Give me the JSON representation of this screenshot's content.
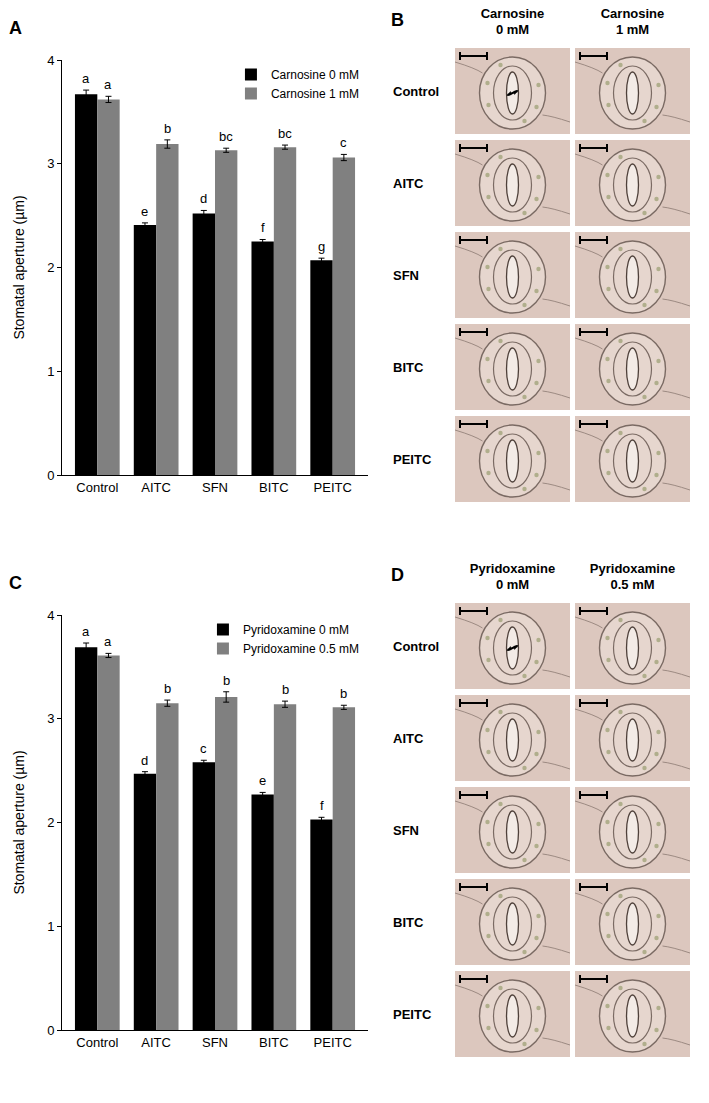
{
  "chart_data": [
    {
      "panel": "A",
      "type": "bar",
      "ylabel": "Stomatal aperture (µm)",
      "categories": [
        "Control",
        "AITC",
        "SFN",
        "BITC",
        "PEITC"
      ],
      "ylim": [
        0,
        4
      ],
      "yticks": [
        0,
        1,
        2,
        3,
        4
      ],
      "grid": false,
      "legend": "top right",
      "series": [
        {
          "name": "Carnosine 0 mM",
          "color": "#000000",
          "values": [
            3.67,
            2.41,
            2.52,
            2.25,
            2.07
          ],
          "error": [
            0.04,
            0.02,
            0.03,
            0.02,
            0.02
          ],
          "annotations": [
            "a",
            "e",
            "d",
            "f",
            "g"
          ]
        },
        {
          "name": "Carnosine 1 mM",
          "color": "#808080",
          "values": [
            3.62,
            3.19,
            3.13,
            3.16,
            3.06
          ],
          "error": [
            0.03,
            0.04,
            0.02,
            0.02,
            0.03
          ],
          "annotations": [
            "a",
            "b",
            "bc",
            "bc",
            "c"
          ]
        }
      ]
    },
    {
      "panel": "C",
      "type": "bar",
      "ylabel": "Stomatal aperture (µm)",
      "categories": [
        "Control",
        "AITC",
        "SFN",
        "BITC",
        "PEITC"
      ],
      "ylim": [
        0,
        4
      ],
      "yticks": [
        0,
        1,
        2,
        3,
        4
      ],
      "grid": false,
      "legend": "top right",
      "series": [
        {
          "name": "Pyridoxamine 0 mM",
          "color": "#000000",
          "values": [
            3.69,
            2.47,
            2.58,
            2.27,
            2.03
          ],
          "error": [
            0.04,
            0.02,
            0.02,
            0.02,
            0.02
          ],
          "annotations": [
            "a",
            "d",
            "c",
            "e",
            "f"
          ]
        },
        {
          "name": "Pyridoxamine 0.5 mM",
          "color": "#808080",
          "values": [
            3.61,
            3.15,
            3.21,
            3.14,
            3.11
          ],
          "error": [
            0.02,
            0.03,
            0.05,
            0.03,
            0.02
          ],
          "annotations": [
            "a",
            "b",
            "b",
            "b",
            "b"
          ]
        }
      ]
    }
  ],
  "micrographs": [
    {
      "panel": "B",
      "columns": [
        "Carnosine 0 mM",
        "Carnosine 1 mM"
      ],
      "rows": [
        "Control",
        "AITC",
        "SFN",
        "BITC",
        "PEITC"
      ]
    },
    {
      "panel": "D",
      "columns": [
        "Pyridoxamine 0 mM",
        "Pyridoxamine 0.5 mM"
      ],
      "rows": [
        "Control",
        "AITC",
        "SFN",
        "BITC",
        "PEITC"
      ]
    }
  ]
}
